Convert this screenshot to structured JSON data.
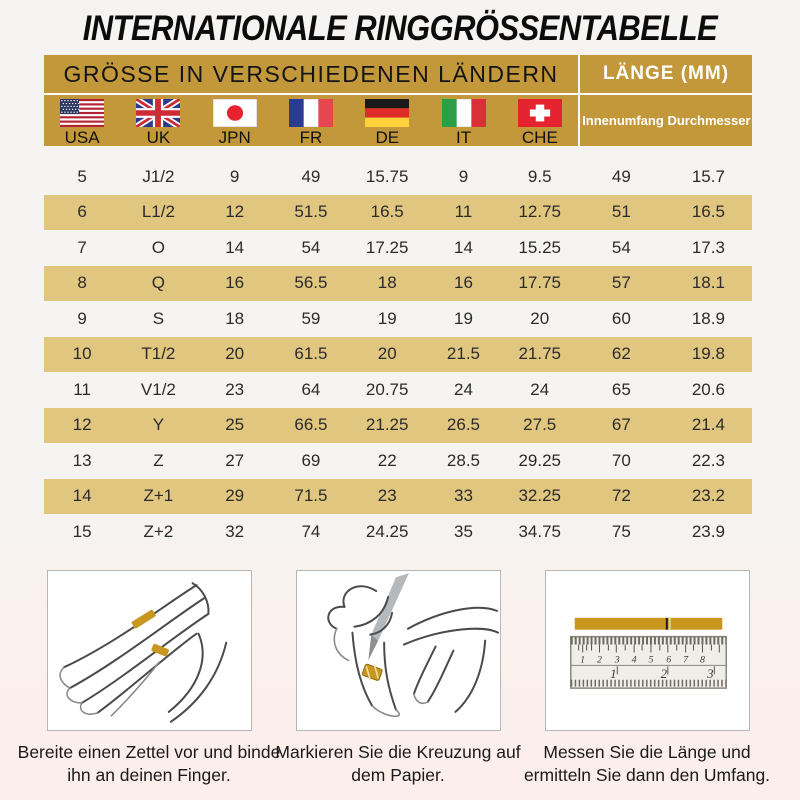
{
  "title": "INTERNATIONALE RINGGRÖSSENTABELLE",
  "table": {
    "header_left": "GRÖSSE IN VERSCHIEDENEN LÄNDERN",
    "header_right": "LÄNGE (MM)",
    "countries": [
      {
        "label": "USA",
        "icon": "usa-flag-icon"
      },
      {
        "label": "UK",
        "icon": "uk-flag-icon"
      },
      {
        "label": "JPN",
        "icon": "japan-flag-icon"
      },
      {
        "label": "FR",
        "icon": "france-flag-icon"
      },
      {
        "label": "DE",
        "icon": "germany-flag-icon"
      },
      {
        "label": "IT",
        "icon": "italy-flag-icon"
      },
      {
        "label": "CHE",
        "icon": "switzerland-flag-icon"
      }
    ],
    "measure_columns": [
      "Innenumfang",
      "Durchmesser"
    ],
    "rows": [
      [
        "5",
        "J1/2",
        "9",
        "49",
        "15.75",
        "9",
        "9.5",
        "49",
        "15.7"
      ],
      [
        "6",
        "L1/2",
        "12",
        "51.5",
        "16.5",
        "11",
        "12.75",
        "51",
        "16.5"
      ],
      [
        "7",
        "O",
        "14",
        "54",
        "17.25",
        "14",
        "15.25",
        "54",
        "17.3"
      ],
      [
        "8",
        "Q",
        "16",
        "56.5",
        "18",
        "16",
        "17.75",
        "57",
        "18.1"
      ],
      [
        "9",
        "S",
        "18",
        "59",
        "19",
        "19",
        "20",
        "60",
        "18.9"
      ],
      [
        "10",
        "T1/2",
        "20",
        "61.5",
        "20",
        "21.5",
        "21.75",
        "62",
        "19.8"
      ],
      [
        "11",
        "V1/2",
        "23",
        "64",
        "20.75",
        "24",
        "24",
        "65",
        "20.6"
      ],
      [
        "12",
        "Y",
        "25",
        "66.5",
        "21.25",
        "26.5",
        "27.5",
        "67",
        "21.4"
      ],
      [
        "13",
        "Z",
        "27",
        "69",
        "22",
        "28.5",
        "29.25",
        "70",
        "22.3"
      ],
      [
        "14",
        "Z+1",
        "29",
        "71.5",
        "23",
        "33",
        "32.25",
        "72",
        "23.2"
      ],
      [
        "15",
        "Z+2",
        "32",
        "74",
        "24.25",
        "35",
        "34.75",
        "75",
        "23.9"
      ]
    ]
  },
  "steps": [
    {
      "caption": "Bereite einen Zettel vor und binde ihn an deinen Finger.",
      "illustration": "hand-with-paper-strip-illustration"
    },
    {
      "caption": "Markieren Sie die Kreuzung auf dem Papier.",
      "illustration": "pen-marking-paper-illustration"
    },
    {
      "caption": "Messen Sie die Länge und ermitteln Sie dann den Umfang.",
      "illustration": "ruler-measuring-illustration"
    }
  ],
  "colors": {
    "gold": "#C2983B",
    "row_gold": "#E1C67F",
    "strip_gold": "#C9971F",
    "background_top": "#F5F4F2",
    "background_bottom": "#FBEEEB"
  }
}
